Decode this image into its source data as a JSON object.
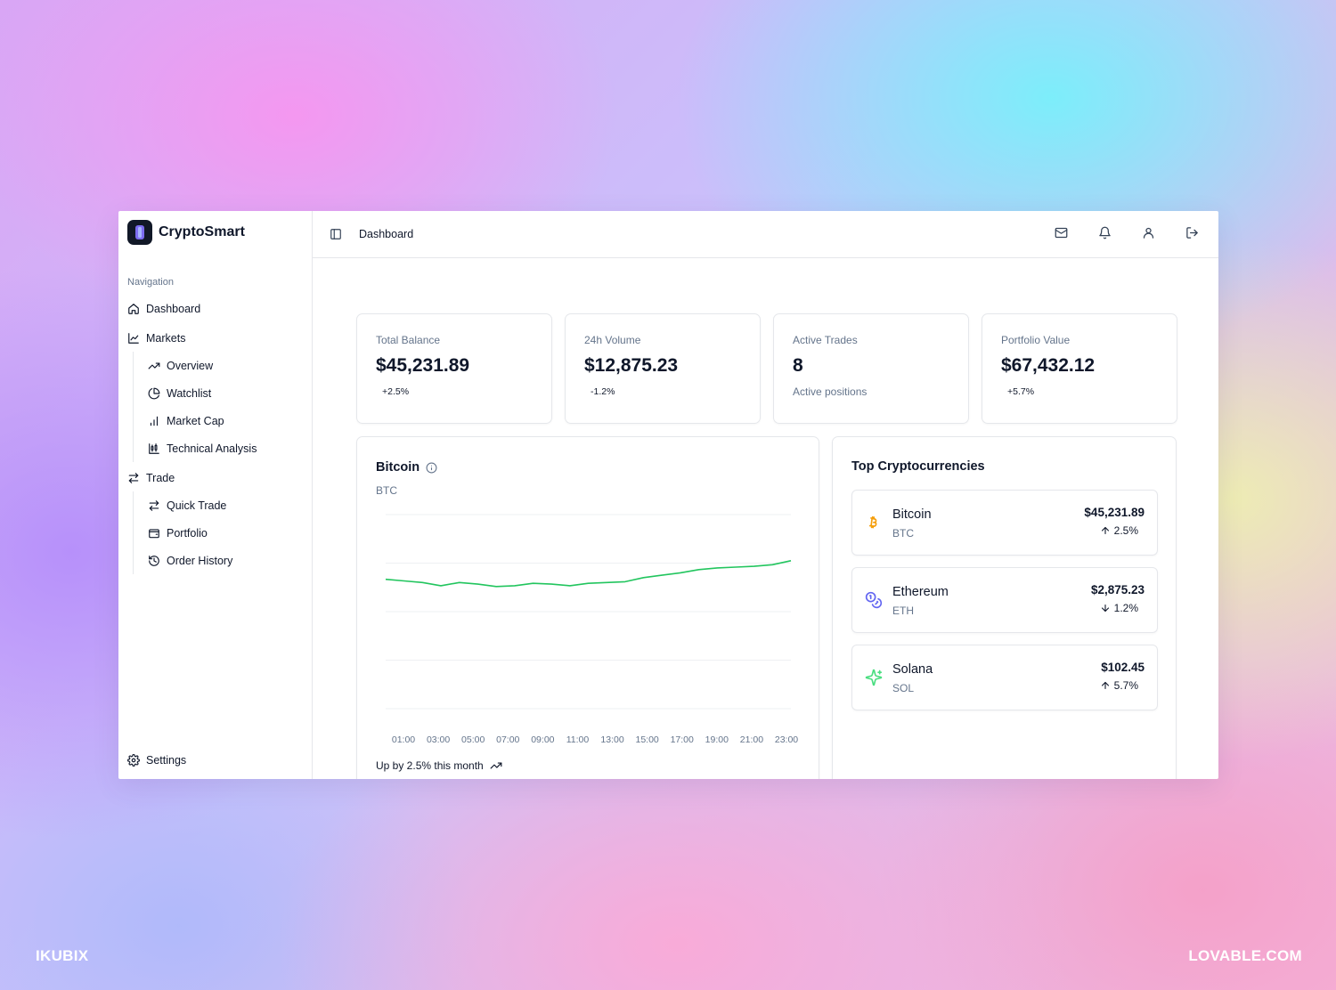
{
  "watermarks": {
    "left": "IKUBIX",
    "right": "LOVABLE.COM"
  },
  "app": {
    "name": "CryptoSmart"
  },
  "sidebar": {
    "caption": "Navigation",
    "items": [
      {
        "label": "Dashboard",
        "icon": "home-icon"
      },
      {
        "label": "Markets",
        "icon": "line-chart-icon",
        "children": [
          {
            "label": "Overview",
            "icon": "trending-up-icon"
          },
          {
            "label": "Watchlist",
            "icon": "pie-chart-icon"
          },
          {
            "label": "Market Cap",
            "icon": "bar-chart-icon"
          },
          {
            "label": "Technical Analysis",
            "icon": "candlestick-icon"
          }
        ]
      },
      {
        "label": "Trade",
        "icon": "swap-icon",
        "children": [
          {
            "label": "Quick Trade",
            "icon": "swap-icon"
          },
          {
            "label": "Portfolio",
            "icon": "wallet-icon"
          },
          {
            "label": "Order History",
            "icon": "history-icon"
          }
        ]
      }
    ],
    "settings": "Settings"
  },
  "header": {
    "title": "Dashboard",
    "icons": [
      "mail-icon",
      "bell-icon",
      "user-icon",
      "logout-icon"
    ]
  },
  "stats": [
    {
      "label": "Total Balance",
      "value": "$45,231.89",
      "change": "+2.5%"
    },
    {
      "label": "24h Volume",
      "value": "$12,875.23",
      "change": "-1.2%"
    },
    {
      "label": "Active Trades",
      "value": "8",
      "sub": "Active positions"
    },
    {
      "label": "Portfolio Value",
      "value": "$67,432.12",
      "change": "+5.7%"
    }
  ],
  "chart_card": {
    "title": "Bitcoin",
    "subtitle": "BTC",
    "footer": "Up by 2.5% this month",
    "line_color": "#22c55e"
  },
  "chart_data": {
    "type": "line",
    "title": "Bitcoin",
    "x": [
      "01:00",
      "02:00",
      "03:00",
      "04:00",
      "05:00",
      "06:00",
      "07:00",
      "08:00",
      "09:00",
      "10:00",
      "11:00",
      "12:00",
      "13:00",
      "14:00",
      "15:00",
      "16:00",
      "17:00",
      "18:00",
      "19:00",
      "20:00",
      "21:00",
      "22:00",
      "23:00"
    ],
    "xticks": [
      "01:00",
      "03:00",
      "05:00",
      "07:00",
      "09:00",
      "11:00",
      "13:00",
      "15:00",
      "17:00",
      "19:00",
      "21:00",
      "23:00"
    ],
    "series": [
      {
        "values": [
          45000,
          44980,
          44960,
          44920,
          44960,
          44940,
          44910,
          44920,
          44950,
          44940,
          44920,
          44950,
          44960,
          44970,
          45020,
          45050,
          45080,
          45120,
          45140,
          45150,
          45160,
          45180,
          45230
        ]
      }
    ],
    "ylim": [
      43400,
      45800
    ],
    "grid": true
  },
  "top_crypto": {
    "title": "Top Cryptocurrencies",
    "coins": [
      {
        "name": "Bitcoin",
        "symbol": "BTC",
        "price": "$45,231.89",
        "change": "2.5%",
        "direction": "up",
        "icon": "bitcoin-icon",
        "color": "#f59e0b"
      },
      {
        "name": "Ethereum",
        "symbol": "ETH",
        "price": "$2,875.23",
        "change": "1.2%",
        "direction": "down",
        "icon": "coins-icon",
        "color": "#6366f1"
      },
      {
        "name": "Solana",
        "symbol": "SOL",
        "price": "$102.45",
        "change": "5.7%",
        "direction": "up",
        "icon": "sparkles-icon",
        "color": "#4ade80"
      }
    ]
  }
}
